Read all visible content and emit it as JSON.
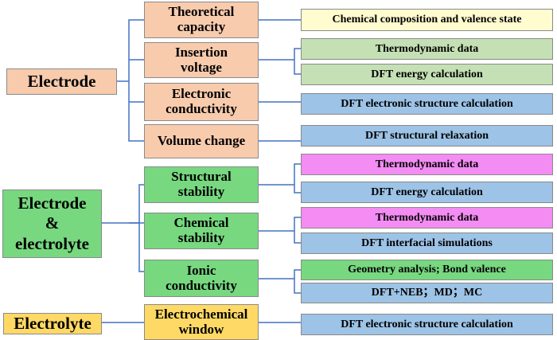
{
  "colors": {
    "electrode": "#f8cbad",
    "both": "#77d880",
    "electrolyte": "#ffd966",
    "pale_yellow": "#fffccf",
    "light_green": "#c5e0b4",
    "light_blue": "#9dc3e6",
    "magenta": "#f38cf3",
    "green": "#77d880",
    "connector": "#4472c4"
  },
  "categories": [
    {
      "id": "electrode",
      "label": "Electrode"
    },
    {
      "id": "both",
      "label": "Electrode\n&\nelectrolyte"
    },
    {
      "id": "electrolyte",
      "label": "Electrolyte"
    }
  ],
  "properties": [
    {
      "label": "Theoretical\ncapacity"
    },
    {
      "label": "Insertion\nvoltage"
    },
    {
      "label": "Electronic\nconductivity"
    },
    {
      "label": "Volume change"
    },
    {
      "label": "Structural\nstability"
    },
    {
      "label": "Chemical\nstability"
    },
    {
      "label": "Ionic\nconductivity"
    },
    {
      "label": "Electrochemical\nwindow"
    }
  ],
  "methods": [
    {
      "label": "Chemical composition and valence state"
    },
    {
      "label": "Thermodynamic data"
    },
    {
      "label": "DFT energy calculation"
    },
    {
      "label": "DFT electronic structure calculation"
    },
    {
      "label": "DFT structural relaxation"
    },
    {
      "label": "Thermodynamic data"
    },
    {
      "label": "DFT energy calculation"
    },
    {
      "label": "Thermodynamic data"
    },
    {
      "label": "DFT interfacial simulations"
    },
    {
      "label": "Geometry analysis; Bond valence"
    },
    {
      "label": "DFT+NEB；MD；MC"
    },
    {
      "label": "DFT electronic structure calculation"
    }
  ]
}
